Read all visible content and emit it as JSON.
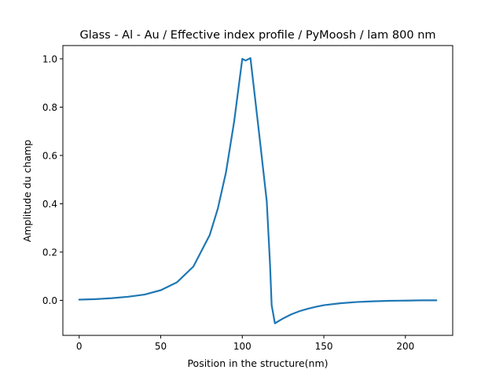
{
  "chart_data": {
    "type": "line",
    "title": "Glass - Al - Au / Effective index profile / PyMoosh / lam 800 nm",
    "xlabel": "Position in the structure(nm)",
    "ylabel": "Amplitude du champ",
    "xlim": [
      -10,
      229
    ],
    "ylim": [
      -0.145,
      1.055
    ],
    "xticks": [
      0,
      50,
      100,
      150,
      200
    ],
    "xtick_labels": [
      "0",
      "50",
      "100",
      "150",
      "200"
    ],
    "yticks": [
      0.0,
      0.2,
      0.4,
      0.6,
      0.8,
      1.0
    ],
    "ytick_labels": [
      "0.0",
      "0.2",
      "0.4",
      "0.6",
      "0.8",
      "1.0"
    ],
    "grid": false,
    "line_color": "#1f77b4",
    "series": [
      {
        "x": [
          0,
          10,
          20,
          30,
          40,
          50,
          60,
          70,
          80,
          85,
          90,
          95,
          100,
          102,
          105,
          110,
          115,
          117,
          118,
          120,
          125,
          130,
          135,
          140,
          145,
          150,
          160,
          170,
          180,
          190,
          200,
          210,
          219
        ],
        "values": [
          0.003,
          0.005,
          0.009,
          0.015,
          0.024,
          0.042,
          0.075,
          0.14,
          0.27,
          0.38,
          0.53,
          0.74,
          1.0,
          0.993,
          1.003,
          0.71,
          0.41,
          0.15,
          -0.02,
          -0.095,
          -0.075,
          -0.058,
          -0.045,
          -0.035,
          -0.027,
          -0.02,
          -0.012,
          -0.007,
          -0.004,
          -0.002,
          -0.001,
          0.0,
          0.0
        ]
      }
    ]
  }
}
